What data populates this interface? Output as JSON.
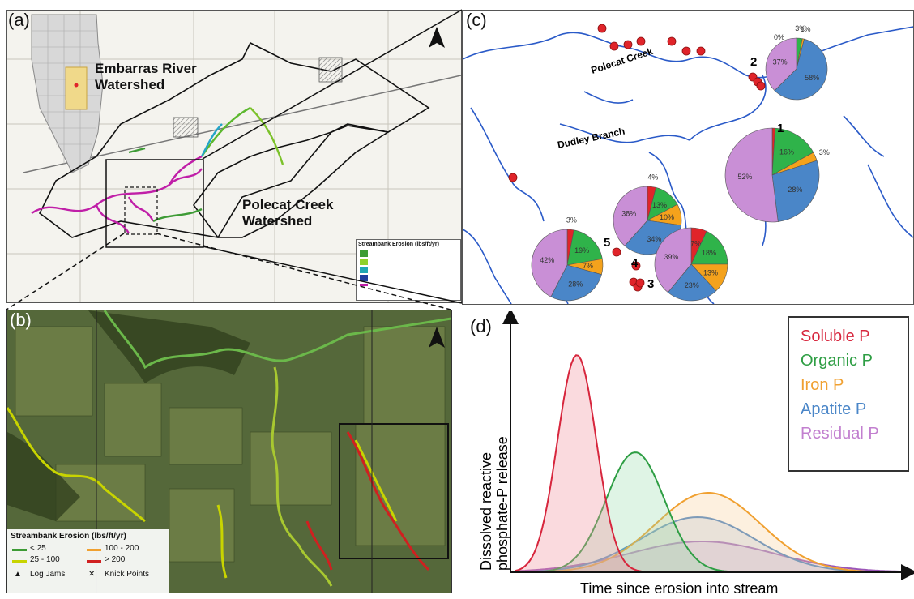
{
  "panels": {
    "a": {
      "label": "(a)",
      "embarras": "Embarras River\nWatershed",
      "polecat": "Polecat Creek\nWatershed",
      "legend_title": "Streambank Erosion (lbs/ft/yr)"
    },
    "b": {
      "label": "(b)",
      "legend_title": "Streambank Erosion (lbs/ft/yr)",
      "legend_items": [
        {
          "label": "< 25",
          "color": "#3d9b35"
        },
        {
          "label": "25 - 100",
          "color": "#c8d400"
        },
        {
          "label": "100 - 200",
          "color": "#f0a030"
        },
        {
          "label": "> 200",
          "color": "#d02020"
        }
      ],
      "log_jams": "Log Jams",
      "knick_points": "Knick Points"
    },
    "c": {
      "label": "(c)",
      "streams": {
        "polecat": "Polecat Creek",
        "dudley": "Dudley Branch"
      },
      "sites": [
        "1",
        "2",
        "3",
        "4",
        "5"
      ]
    },
    "d": {
      "label": "(d)",
      "xlabel": "Time since erosion into stream",
      "ylabel_line1": "Dissolved reactive",
      "ylabel_line2": "phosphate-P release",
      "legend": [
        {
          "label": "Soluble P",
          "color": "#d7263d"
        },
        {
          "label": "Organic P",
          "color": "#2e9e44"
        },
        {
          "label": "Iron P",
          "color": "#f0a030"
        },
        {
          "label": "Apatite P",
          "color": "#4a86c8"
        },
        {
          "label": "Residual P",
          "color": "#c27fcf"
        }
      ]
    }
  },
  "pie_charts": [
    {
      "site": "2",
      "values": [
        0,
        3,
        1,
        58,
        37
      ],
      "labels": [
        "0%",
        "3%",
        "1%",
        "58%",
        "37%"
      ]
    },
    {
      "site": "1",
      "values": [
        1,
        16,
        3,
        28,
        52
      ],
      "labels": [
        "",
        "16%",
        "3%",
        "28%",
        "52%"
      ]
    },
    {
      "site": "4",
      "values": [
        4,
        13,
        10,
        34,
        38
      ],
      "labels": [
        "4%",
        "13%",
        "10%",
        "34%",
        "38%"
      ]
    },
    {
      "site": "3",
      "values": [
        7,
        18,
        13,
        23,
        39
      ],
      "labels": [
        "7%",
        "18%",
        "13%",
        "23%",
        "39%"
      ]
    },
    {
      "site": "5",
      "values": [
        3,
        19,
        7,
        28,
        42
      ],
      "labels": [
        "3%",
        "19%",
        "7%",
        "28%",
        "42%"
      ]
    }
  ],
  "pie_colors": [
    "#e0242a",
    "#2fb34a",
    "#f4a21c",
    "#4a86c8",
    "#c98fd6"
  ]
}
